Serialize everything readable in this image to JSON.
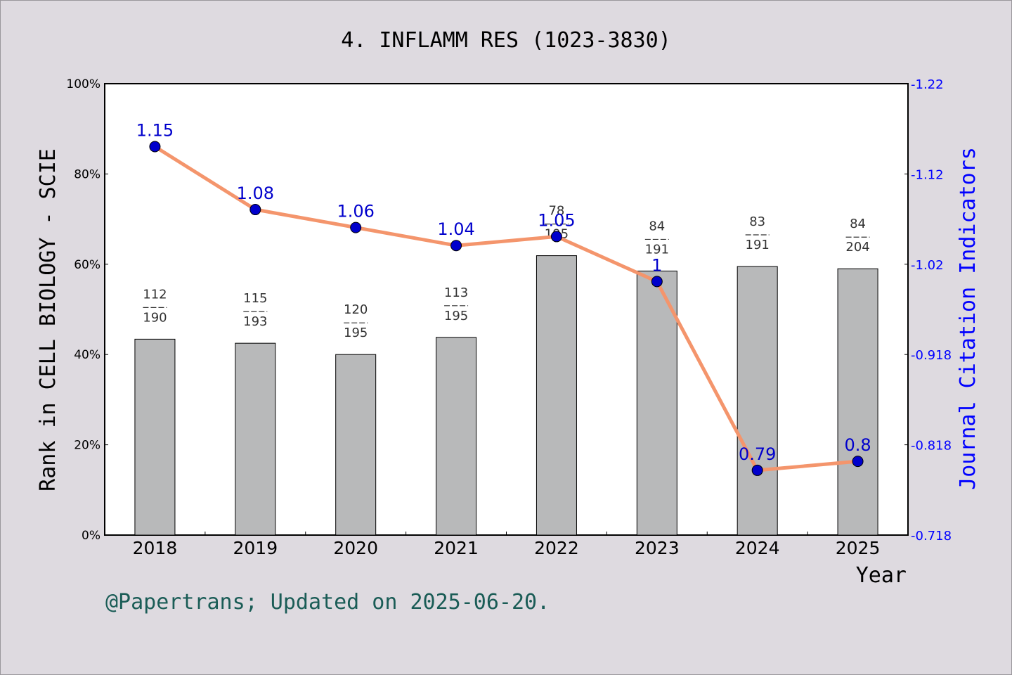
{
  "chart_data": {
    "type": "bar+line",
    "title": "4. INFLAMM RES (1023-3830)",
    "xlabel": "Year",
    "ylabel_left": "Rank in CELL BIOLOGY - SCIE",
    "ylabel_right": "Journal Citation Indicators",
    "categories": [
      "2018",
      "2019",
      "2020",
      "2021",
      "2022",
      "2023",
      "2024",
      "2025"
    ],
    "left_axis": {
      "ylim": [
        0,
        100
      ],
      "ticks": [
        "0%",
        "20%",
        "40%",
        "60%",
        "80%",
        "100%"
      ]
    },
    "right_axis": {
      "ylim": [
        0.718,
        1.22
      ],
      "ticks": [
        "0.718",
        "0.818",
        "0.918",
        "1.02",
        "1.12",
        "1.22"
      ]
    },
    "bars": {
      "ranks": [
        "112",
        "115",
        "120",
        "113",
        "78",
        "84",
        "83",
        "84"
      ],
      "totals": [
        "190",
        "193",
        "195",
        "195",
        "195",
        "191",
        "191",
        "204"
      ],
      "values": [
        43.4,
        42.5,
        40.0,
        43.8,
        61.9,
        58.5,
        59.5,
        59.0
      ]
    },
    "line": {
      "values": [
        1.15,
        1.08,
        1.06,
        1.04,
        1.05,
        1,
        0.79,
        0.8
      ],
      "labels": [
        "1.15",
        "1.08",
        "1.06",
        "1.04",
        "1.05",
        "1",
        "0.79",
        "0.8"
      ]
    },
    "colors": {
      "bar": "#b8b9ba",
      "line": "#f4956c",
      "marker": "#0000cc",
      "right_axis": "#0000ff",
      "footer": "#1a5c56",
      "background": "#dedae0"
    }
  },
  "footer": "@Papertrans; Updated on 2025-06-20."
}
